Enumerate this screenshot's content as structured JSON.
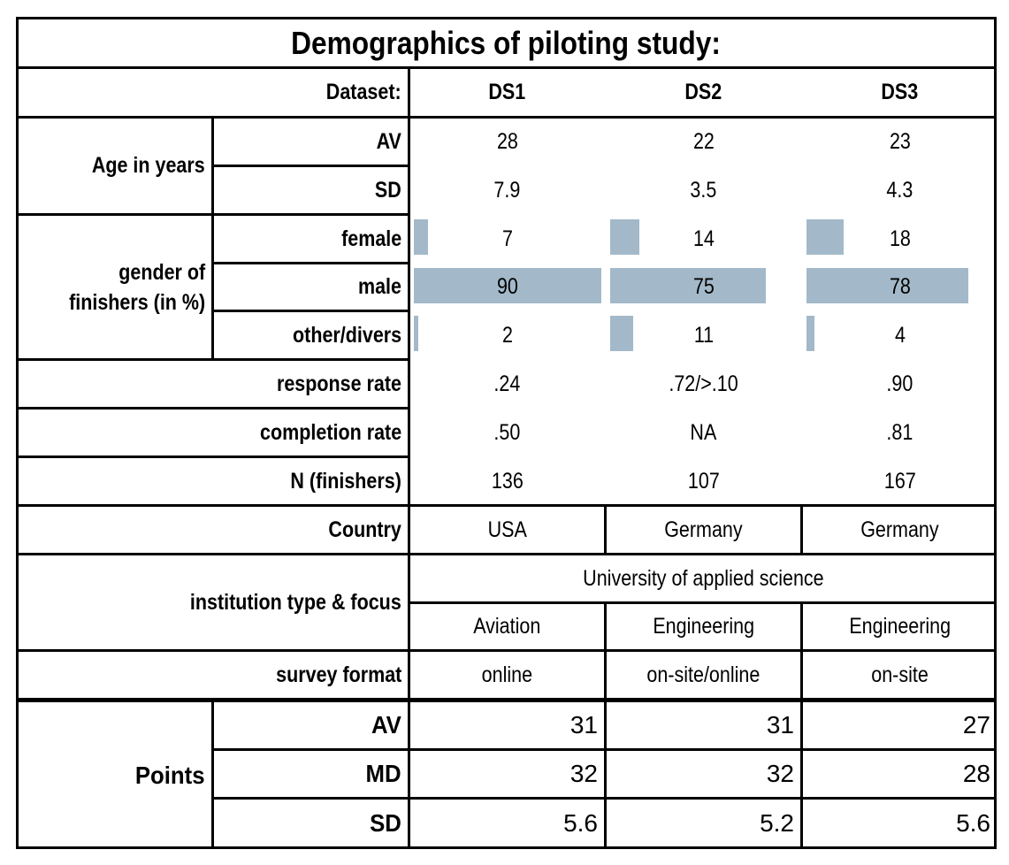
{
  "title": "Demographics of piloting study:",
  "dataset_label": "Dataset:",
  "datasets": [
    "DS1",
    "DS2",
    "DS3"
  ],
  "age": {
    "group_label": "Age in years",
    "rows": [
      {
        "label": "AV",
        "values": [
          "28",
          "22",
          "23"
        ]
      },
      {
        "label": "SD",
        "values": [
          "7.9",
          "3.5",
          "4.3"
        ]
      }
    ]
  },
  "gender": {
    "group_label_line1": "gender of",
    "group_label_line2": "finishers (in %)",
    "rows": [
      {
        "label": "female",
        "values": [
          "7",
          "14",
          "18"
        ],
        "percent": [
          7,
          14,
          18
        ]
      },
      {
        "label": "male",
        "values": [
          "90",
          "75",
          "78"
        ],
        "percent": [
          90,
          75,
          78
        ]
      },
      {
        "label": "other/divers",
        "values": [
          "2",
          "11",
          "4"
        ],
        "percent": [
          2,
          11,
          4
        ]
      }
    ],
    "bar_color": "#a3b9c9"
  },
  "response_rate": {
    "label": "response rate",
    "values": [
      ".24",
      ".72/>.10",
      ".90"
    ]
  },
  "completion_rate": {
    "label": "completion rate",
    "values": [
      ".50",
      "NA",
      ".81"
    ]
  },
  "n_finishers": {
    "label": "N (finishers)",
    "values": [
      "136",
      "107",
      "167"
    ]
  },
  "country": {
    "label": "Country",
    "values": [
      "USA",
      "Germany",
      "Germany"
    ]
  },
  "institution": {
    "label": "institution type & focus",
    "type": "University of applied science",
    "focus": [
      "Aviation",
      "Engineering",
      "Engineering"
    ]
  },
  "survey_format": {
    "label": "survey format",
    "values": [
      "online",
      "on-site/online",
      "on-site"
    ]
  },
  "points": {
    "group_label": "Points",
    "rows": [
      {
        "label": "AV",
        "values": [
          "31",
          "31",
          "27"
        ]
      },
      {
        "label": "MD",
        "values": [
          "32",
          "32",
          "28"
        ]
      },
      {
        "label": "SD",
        "values": [
          "5.6",
          "5.2",
          "5.6"
        ]
      }
    ]
  }
}
